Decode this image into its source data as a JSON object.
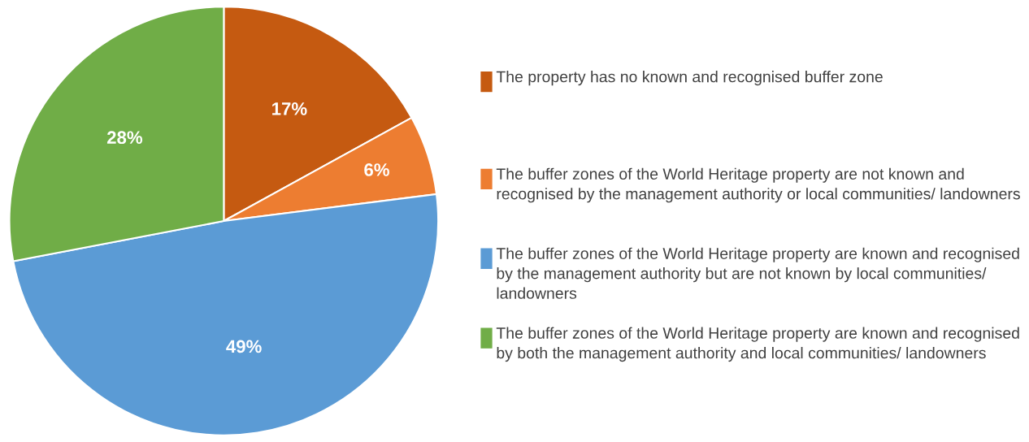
{
  "chart_data": {
    "type": "pie",
    "categories": [
      "The property has no known and recognised buffer zone",
      "The buffer zones of the World Heritage property are not known and recognised by the management authority or local communities/ landowners",
      "The buffer zones of the World Heritage property are known and recognised by the management authority but are not known by local communities/ landowners",
      "The buffer zones of the World Heritage property are known and recognised by both the management authority and local communities/ landowners"
    ],
    "values": [
      17,
      6,
      49,
      28
    ],
    "colors": [
      "#c55a11",
      "#ed7d31",
      "#5b9bd5",
      "#70ad47"
    ],
    "value_labels": [
      "17%",
      "6%",
      "49%",
      "28%"
    ],
    "legend": "right"
  }
}
